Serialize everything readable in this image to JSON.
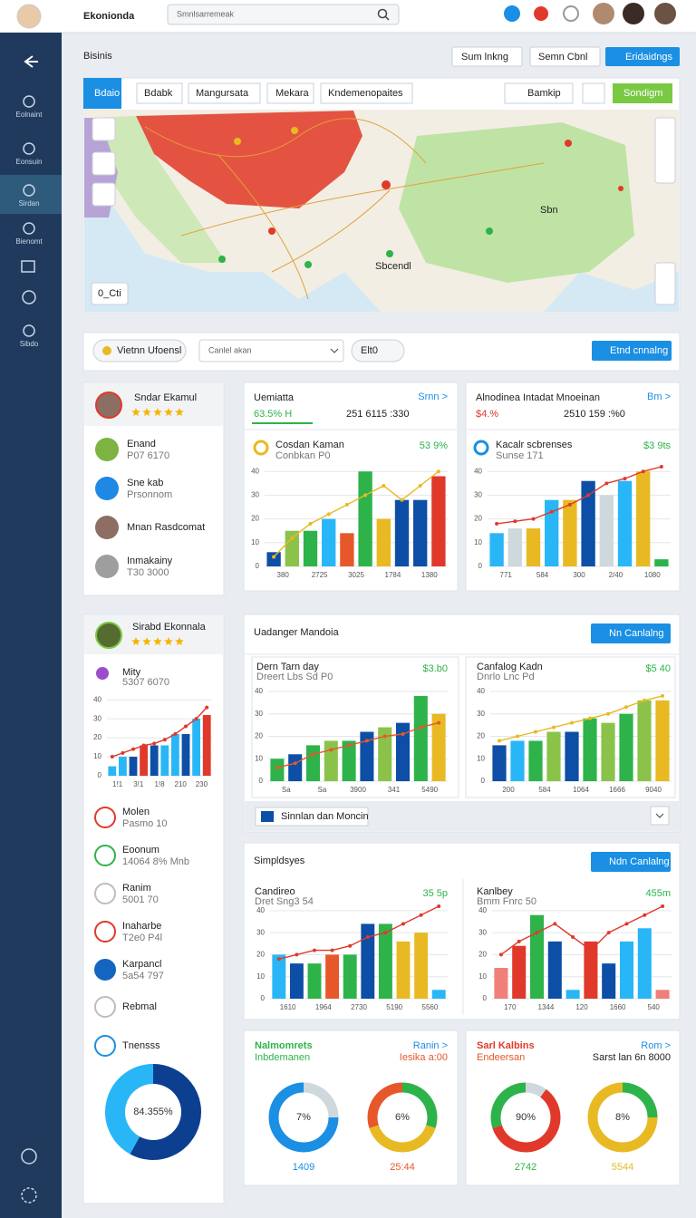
{
  "header": {
    "logo": "Ekonionda",
    "search": "Smnlsarremeak"
  },
  "sidebar": {
    "items": [
      "Eolnaint",
      "Eonsuin",
      "Sirdan",
      "Bienomt",
      "Sibdo"
    ]
  },
  "page": {
    "title": "Bisinis",
    "buttons": [
      "Sum lnkng",
      "Semn Cbnl",
      "Eridaidngs"
    ]
  },
  "map": {
    "tabs": [
      "Bdaio",
      "Bdabk",
      "Mangursata",
      "Mekara",
      "Kndemenopaites"
    ],
    "actions": [
      "Bamkip",
      "Sondigm"
    ],
    "labels": [
      "Sbcendl",
      "Sbn"
    ],
    "zoom": "0_Cti"
  },
  "filters": {
    "chip": "Vietnn Ufoensl",
    "select": "Canlel akan",
    "tag": "Elt0",
    "button": "Etnd cnnalng"
  },
  "profile_1": {
    "name": "Sndar Ekamul",
    "rating": 5,
    "items": [
      {
        "name": "Enand",
        "sub": "P07 6170"
      },
      {
        "name": "Sne kab",
        "sub": "Prsonnom"
      },
      {
        "name": "Mnan Rasdcomat"
      },
      {
        "name": "Inmakainy",
        "sub": "T30 3000"
      }
    ]
  },
  "profile_2": {
    "name": "Sirabd Ekonnala",
    "rating": 5,
    "items": [
      {
        "name": "Molen",
        "sub": "Pasmo 10"
      },
      {
        "name": "Eoonum",
        "sub": "14064 8% Mnb"
      },
      {
        "name": "Ranim",
        "sub": "5001 70"
      },
      {
        "name": "Inaharbe",
        "sub": "T2e0 P4l"
      },
      {
        "name": "Karpancl",
        "sub": "5a54 797"
      },
      {
        "name": "Rebmal"
      },
      {
        "name": "Tnensss"
      }
    ]
  },
  "panels": [
    {
      "title": "Uadanger Mandoia",
      "button": "Nn Canlalng",
      "footer": "Sinnlan dan Moncin"
    },
    {
      "title": "Simpldsyes",
      "button": "Ndn Canlalng"
    }
  ],
  "summary_cards": [
    {
      "title": "Nalmomrets",
      "sub": "Inbdemanen",
      "link": "Ranin >",
      "note": "Iesika a:00"
    },
    {
      "title": "Sarl Kalbins",
      "sub": "Endeersan",
      "link": "Rom >",
      "note": "Sarst lan 6n 8000"
    }
  ],
  "chart_data": [
    {
      "type": "combo",
      "title": "Uemiatta",
      "link": "Srnn >",
      "headline": "63.5% H",
      "headline_sub": "251 6115 :330",
      "legend": "Cosdan Kaman",
      "legend_sub": "Conbkan P0",
      "badge": "53 9%",
      "ylim": [
        0,
        42
      ],
      "yticks": [
        0,
        10,
        20,
        30,
        40
      ],
      "grid": true,
      "categories": [
        "380",
        null,
        "2725",
        null,
        "3025",
        null,
        "1784",
        null,
        "1380",
        null
      ],
      "values": [
        6,
        15,
        15,
        20,
        14,
        40,
        20,
        28,
        28,
        38
      ],
      "colors": [
        "#0d4ea6",
        "#8bc34a",
        "#2db34a",
        "#29b6f6",
        "#e6582a",
        "#2db34a",
        "#e8b923",
        "#0d4ea6",
        "#0d4ea6",
        "#e0392b"
      ],
      "line": [
        4,
        12,
        18,
        22,
        26,
        30,
        34,
        28,
        34,
        40
      ],
      "line_color": "#e8b923"
    },
    {
      "type": "combo",
      "title": "Alnodinea Intadat Mnoeinan",
      "link": "Bm >",
      "headline": "$4.%",
      "headline_sub": "2510 159 :%0",
      "legend": "Kacalr scbrenses",
      "legend_sub": "Sunse 171",
      "badge": "$3 9ts",
      "ylim": [
        0,
        42
      ],
      "yticks": [
        0,
        10,
        20,
        30,
        40
      ],
      "grid": true,
      "categories": [
        "771",
        null,
        "584",
        null,
        "300",
        null,
        "2/40",
        null,
        "1080",
        null
      ],
      "values": [
        14,
        16,
        16,
        28,
        28,
        36,
        30,
        36,
        40,
        3
      ],
      "colors": [
        "#29b6f6",
        "#cfd8dc",
        "#e8b923",
        "#29b6f6",
        "#e8b923",
        "#0d4ea6",
        "#cfd8dc",
        "#29b6f6",
        "#e8b923",
        "#2db34a"
      ],
      "line": [
        18,
        19,
        20,
        23,
        26,
        30,
        35,
        37,
        40,
        42
      ],
      "line_color": "#e0392b"
    },
    {
      "type": "combo",
      "title": "Mity",
      "subtitle": "5307 6070",
      "ylim": [
        0,
        42
      ],
      "yticks": [
        0,
        10,
        20,
        30,
        40
      ],
      "grid": true,
      "categories": [
        "1!1",
        null,
        "3!1",
        null,
        "1!8",
        null,
        "210",
        null,
        "230",
        null
      ],
      "values": [
        5,
        10,
        10,
        16,
        16,
        16,
        22,
        22,
        30,
        32
      ],
      "colors": [
        "#29b6f6",
        "#29b6f6",
        "#0d4ea6",
        "#e0392b",
        "#0d4ea6",
        "#29b6f6",
        "#29b6f6",
        "#0d4ea6",
        "#29b6f6",
        "#e0392b"
      ],
      "line": [
        10,
        12,
        14,
        16,
        17,
        19,
        22,
        26,
        30,
        36
      ],
      "line_color": "#e0392b"
    },
    {
      "type": "combo",
      "title": "Dern Tarn day",
      "subtitle": "Dreert Lbs Sd P0",
      "badge": "$3.b0",
      "ylim": [
        0,
        42
      ],
      "yticks": [
        0,
        10,
        20,
        30,
        40
      ],
      "grid": true,
      "categories": [
        "Sa",
        null,
        "Sa",
        null,
        "3900",
        null,
        "341",
        null,
        "5490",
        null
      ],
      "values": [
        10,
        12,
        16,
        18,
        18,
        22,
        24,
        26,
        38,
        30
      ],
      "colors": [
        "#2db34a",
        "#0d4ea6",
        "#2db34a",
        "#8bc34a",
        "#2db34a",
        "#0d4ea6",
        "#8bc34a",
        "#0d4ea6",
        "#2db34a",
        "#e8b923"
      ],
      "line": [
        6,
        8,
        12,
        14,
        16,
        18,
        20,
        21,
        24,
        26
      ],
      "line_color": "#e6582a"
    },
    {
      "type": "combo",
      "title": "Canfalog Kadn",
      "subtitle": "Dnrlo Lnc Pd",
      "badge": "$5 40",
      "ylim": [
        0,
        42
      ],
      "yticks": [
        0,
        10,
        20,
        30,
        40
      ],
      "grid": true,
      "categories": [
        "200",
        null,
        "584",
        null,
        "1064",
        null,
        "1666",
        null,
        "9040",
        null
      ],
      "values": [
        16,
        18,
        18,
        22,
        22,
        28,
        26,
        30,
        36,
        36
      ],
      "colors": [
        "#0d4ea6",
        "#29b6f6",
        "#2db34a",
        "#8bc34a",
        "#0d4ea6",
        "#2db34a",
        "#8bc34a",
        "#2db34a",
        "#8bc34a",
        "#e8b923"
      ],
      "line": [
        18,
        20,
        22,
        24,
        26,
        28,
        30,
        33,
        36,
        38
      ],
      "line_color": "#e8b923"
    },
    {
      "type": "combo",
      "title": "Candireo",
      "subtitle": "Dret Sng3 54",
      "badge": "35 5p",
      "ylim": [
        0,
        42
      ],
      "yticks": [
        0,
        10,
        20,
        30,
        40
      ],
      "grid": true,
      "categories": [
        "1610",
        null,
        "1964",
        null,
        "2730",
        null,
        "5190",
        null,
        "5560",
        null
      ],
      "values": [
        20,
        16,
        16,
        20,
        20,
        34,
        34,
        26,
        30,
        4
      ],
      "colors": [
        "#29b6f6",
        "#0d4ea6",
        "#2db34a",
        "#e6582a",
        "#2db34a",
        "#0d4ea6",
        "#2db34a",
        "#e8b923",
        "#e8b923",
        "#29b6f6"
      ],
      "line": [
        18,
        20,
        22,
        22,
        24,
        28,
        30,
        34,
        38,
        42
      ],
      "line_color": "#e0392b"
    },
    {
      "type": "combo",
      "title": "Kanlbey",
      "subtitle": "Bmm Fnrc 50",
      "badge": "455m",
      "ylim": [
        0,
        42
      ],
      "yticks": [
        0,
        10,
        20,
        30,
        40
      ],
      "grid": true,
      "categories": [
        "170",
        null,
        "1344",
        null,
        "120",
        null,
        "1660",
        null,
        "540",
        null
      ],
      "values": [
        14,
        24,
        38,
        26,
        4,
        26,
        16,
        26,
        32,
        4
      ],
      "colors": [
        "#f07f7a",
        "#e0392b",
        "#2db34a",
        "#0d4ea6",
        "#29b6f6",
        "#e0392b",
        "#0d4ea6",
        "#29b6f6",
        "#29b6f6",
        "#f07f7a"
      ],
      "line": [
        20,
        26,
        30,
        34,
        28,
        22,
        30,
        34,
        38,
        42
      ],
      "line_color": "#e0392b"
    },
    {
      "type": "donut",
      "values": [
        58,
        42
      ],
      "colors": [
        "#0d3f91",
        "#29b6f6"
      ],
      "center": "84.355%"
    },
    {
      "type": "donut",
      "values": [
        25,
        75
      ],
      "colors": [
        "#cfd8dc",
        "#1a8fe3"
      ],
      "center": "7%",
      "caption": "1409"
    },
    {
      "type": "donut",
      "values": [
        30,
        40,
        30
      ],
      "colors": [
        "#2db34a",
        "#e8b923",
        "#e6582a"
      ],
      "center": "6%",
      "caption": "25:44"
    },
    {
      "type": "donut",
      "values": [
        10,
        60,
        30
      ],
      "colors": [
        "#cfd8dc",
        "#e0392b",
        "#2db34a"
      ],
      "center": "90%",
      "caption": "2742"
    },
    {
      "type": "donut",
      "values": [
        25,
        75
      ],
      "colors": [
        "#2db34a",
        "#e8b923"
      ],
      "center": "8%",
      "caption": "5544"
    }
  ]
}
